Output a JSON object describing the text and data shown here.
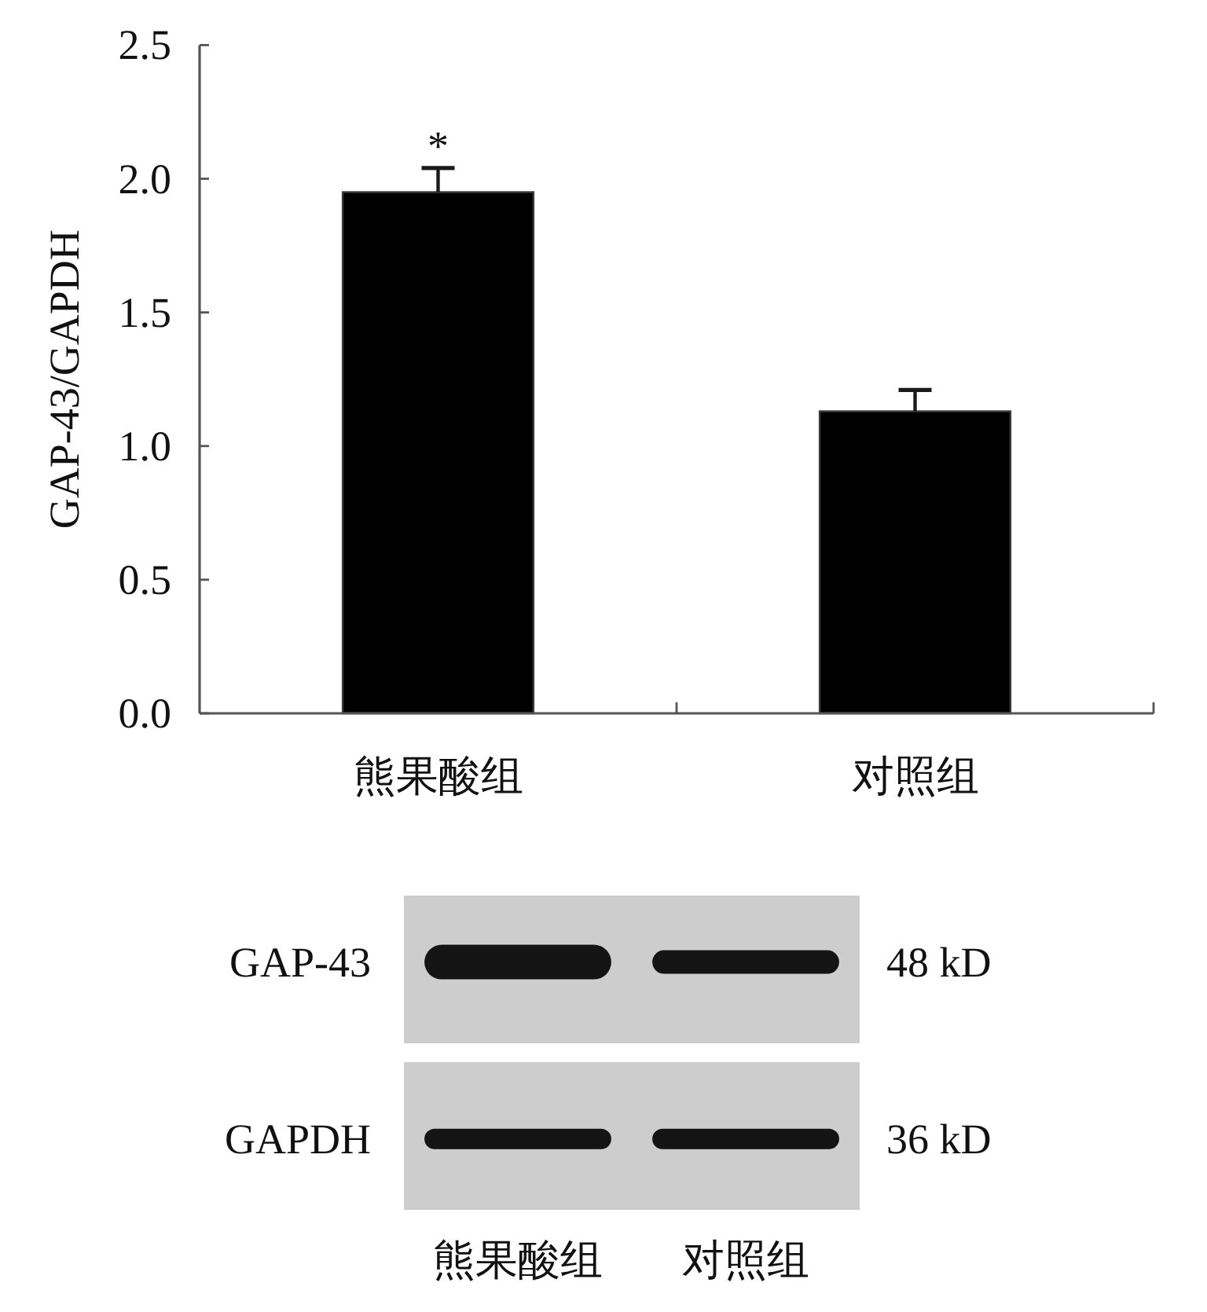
{
  "chart_data": [
    {
      "type": "bar",
      "ylabel": "GAP-43/GAPDH",
      "categories": [
        "熊果酸组",
        "对照组"
      ],
      "values": [
        1.95,
        1.13
      ],
      "errors": [
        [
          1.95,
          2.04
        ],
        [
          1.13,
          1.21
        ]
      ],
      "color": "#000000",
      "ylim": [
        0,
        2.5
      ],
      "yticks": [
        {
          "value": 0,
          "label": "0.0"
        },
        {
          "value": 0.5,
          "label": "0.5"
        },
        {
          "value": 1,
          "label": "1.0"
        },
        {
          "value": 1.5,
          "label": "1.5"
        },
        {
          "value": 2,
          "label": "2.0"
        },
        {
          "value": 2.5,
          "label": "2.5"
        }
      ],
      "annotations": [
        {
          "text": "*",
          "x": "熊果酸组",
          "y": 2.04
        }
      ]
    },
    {
      "type": "other",
      "categories": [
        "熊果酸组",
        "对照组"
      ],
      "y_categories": [
        "GAP-43",
        "GAPDH"
      ],
      "y2_categories": [
        "48 kD",
        "36 kD"
      ]
    }
  ]
}
